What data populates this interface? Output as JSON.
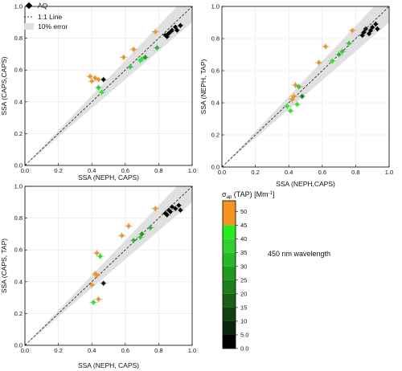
{
  "figure": {
    "note": "450 nm wavelength",
    "legend": {
      "aq": "AQ",
      "line": "1:1 Line",
      "error": "10% error"
    },
    "colorbar": {
      "label_symbol": "σ",
      "label_sub": "ap",
      "label_rest": " (TAP) [Mm",
      "label_sup": "-1",
      "label_close": "]",
      "ticks": [
        "50",
        "45",
        "40",
        "35",
        "30",
        "25",
        "20",
        "15",
        "10",
        "5.0",
        "0.0"
      ],
      "range": [
        0,
        54
      ]
    },
    "colors": {
      "black": "#000000",
      "dark_green": "#1e6a1e",
      "green": "#2fd02f",
      "bright_green": "#22ee22",
      "orange": "#f7931e",
      "error_band": "#e0e0e0"
    }
  },
  "chart_data": [
    {
      "type": "scatter",
      "xlabel": "SSA (NEPH, CAPS)",
      "ylabel": "SSA (CAPS,CAPS)",
      "xlim": [
        0,
        1.0
      ],
      "ylim": [
        0,
        1.0
      ],
      "ticks": [
        "0.0",
        "0.2",
        "0.4",
        "0.6",
        "0.8",
        "1.0"
      ],
      "grid": true,
      "legend": "top-left",
      "points": [
        {
          "x": 0.39,
          "y": 0.56,
          "c": 52
        },
        {
          "x": 0.4,
          "y": 0.53,
          "c": 50
        },
        {
          "x": 0.42,
          "y": 0.55,
          "c": 48
        },
        {
          "x": 0.44,
          "y": 0.54,
          "c": 50
        },
        {
          "x": 0.47,
          "y": 0.54,
          "c": 2
        },
        {
          "x": 0.44,
          "y": 0.49,
          "c": 38
        },
        {
          "x": 0.46,
          "y": 0.46,
          "c": 40
        },
        {
          "x": 0.59,
          "y": 0.68,
          "c": 50
        },
        {
          "x": 0.63,
          "y": 0.62,
          "c": 38
        },
        {
          "x": 0.65,
          "y": 0.73,
          "c": 52
        },
        {
          "x": 0.69,
          "y": 0.66,
          "c": 40
        },
        {
          "x": 0.7,
          "y": 0.67,
          "c": 42
        },
        {
          "x": 0.72,
          "y": 0.68,
          "c": 25
        },
        {
          "x": 0.78,
          "y": 0.84,
          "c": 50
        },
        {
          "x": 0.79,
          "y": 0.74,
          "c": 30
        },
        {
          "x": 0.84,
          "y": 0.82,
          "c": 0
        },
        {
          "x": 0.85,
          "y": 0.81,
          "c": 0
        },
        {
          "x": 0.87,
          "y": 0.84,
          "c": 5
        },
        {
          "x": 0.86,
          "y": 0.83,
          "c": 0
        },
        {
          "x": 0.88,
          "y": 0.85,
          "c": 0
        },
        {
          "x": 0.9,
          "y": 0.87,
          "c": 0
        },
        {
          "x": 0.93,
          "y": 0.88,
          "c": 0
        },
        {
          "x": 0.91,
          "y": 0.85,
          "c": 0
        }
      ]
    },
    {
      "type": "scatter",
      "xlabel": "SSA (NEPH,CAPS)",
      "ylabel": "SSA (NEPH, TAP)",
      "xlim": [
        0,
        1.0
      ],
      "ylim": [
        0,
        1.0
      ],
      "ticks": [
        "0.0",
        "0.2",
        "0.4",
        "0.6",
        "0.8",
        "1.0"
      ],
      "grid": true,
      "points": [
        {
          "x": 0.39,
          "y": 0.38,
          "c": 40
        },
        {
          "x": 0.41,
          "y": 0.35,
          "c": 42
        },
        {
          "x": 0.42,
          "y": 0.42,
          "c": 50
        },
        {
          "x": 0.43,
          "y": 0.44,
          "c": 50
        },
        {
          "x": 0.44,
          "y": 0.51,
          "c": 50
        },
        {
          "x": 0.45,
          "y": 0.39,
          "c": 40
        },
        {
          "x": 0.46,
          "y": 0.5,
          "c": 38
        },
        {
          "x": 0.48,
          "y": 0.44,
          "c": 20
        },
        {
          "x": 0.58,
          "y": 0.65,
          "c": 52
        },
        {
          "x": 0.62,
          "y": 0.75,
          "c": 50
        },
        {
          "x": 0.66,
          "y": 0.66,
          "c": 40
        },
        {
          "x": 0.7,
          "y": 0.7,
          "c": 30
        },
        {
          "x": 0.72,
          "y": 0.72,
          "c": 38
        },
        {
          "x": 0.76,
          "y": 0.77,
          "c": 35
        },
        {
          "x": 0.78,
          "y": 0.85,
          "c": 50
        },
        {
          "x": 0.84,
          "y": 0.82,
          "c": 0
        },
        {
          "x": 0.85,
          "y": 0.84,
          "c": 0
        },
        {
          "x": 0.86,
          "y": 0.86,
          "c": 5
        },
        {
          "x": 0.88,
          "y": 0.83,
          "c": 0
        },
        {
          "x": 0.89,
          "y": 0.85,
          "c": 0
        },
        {
          "x": 0.9,
          "y": 0.87,
          "c": 0
        },
        {
          "x": 0.92,
          "y": 0.89,
          "c": 0
        },
        {
          "x": 0.93,
          "y": 0.86,
          "c": 0
        }
      ]
    },
    {
      "type": "scatter",
      "xlabel": "SSA (NEPH, CAPS)",
      "ylabel": "SSA (CAPS, TAP)",
      "xlim": [
        0,
        1.0
      ],
      "ylim": [
        0,
        1.0
      ],
      "ticks": [
        "0.0",
        "0.2",
        "0.4",
        "0.6",
        "0.8",
        "1.0"
      ],
      "grid": true,
      "points": [
        {
          "x": 0.4,
          "y": 0.38,
          "c": 50
        },
        {
          "x": 0.41,
          "y": 0.27,
          "c": 40
        },
        {
          "x": 0.42,
          "y": 0.45,
          "c": 52
        },
        {
          "x": 0.43,
          "y": 0.44,
          "c": 50
        },
        {
          "x": 0.43,
          "y": 0.58,
          "c": 50
        },
        {
          "x": 0.44,
          "y": 0.29,
          "c": 52
        },
        {
          "x": 0.45,
          "y": 0.56,
          "c": 40
        },
        {
          "x": 0.47,
          "y": 0.39,
          "c": 5
        },
        {
          "x": 0.58,
          "y": 0.69,
          "c": 52
        },
        {
          "x": 0.62,
          "y": 0.75,
          "c": 50
        },
        {
          "x": 0.65,
          "y": 0.66,
          "c": 30
        },
        {
          "x": 0.69,
          "y": 0.68,
          "c": 38
        },
        {
          "x": 0.7,
          "y": 0.7,
          "c": 25
        },
        {
          "x": 0.75,
          "y": 0.74,
          "c": 30
        },
        {
          "x": 0.78,
          "y": 0.86,
          "c": 50
        },
        {
          "x": 0.84,
          "y": 0.83,
          "c": 0
        },
        {
          "x": 0.85,
          "y": 0.82,
          "c": 0
        },
        {
          "x": 0.86,
          "y": 0.85,
          "c": 5
        },
        {
          "x": 0.87,
          "y": 0.84,
          "c": 0
        },
        {
          "x": 0.88,
          "y": 0.87,
          "c": 0
        },
        {
          "x": 0.9,
          "y": 0.86,
          "c": 0
        },
        {
          "x": 0.92,
          "y": 0.88,
          "c": 0
        },
        {
          "x": 0.93,
          "y": 0.85,
          "c": 0
        }
      ]
    }
  ]
}
